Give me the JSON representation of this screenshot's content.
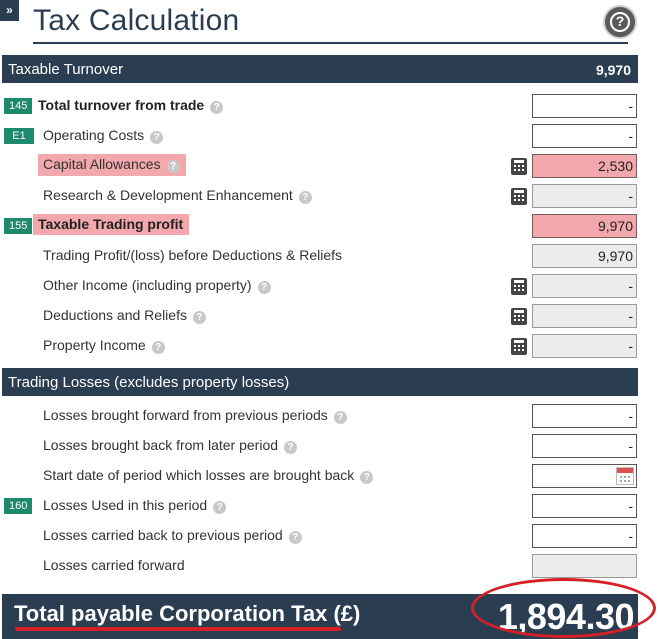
{
  "expand": "»",
  "title": "Tax Calculation",
  "help": "?",
  "sections": {
    "taxable_turnover": {
      "label": "Taxable Turnover",
      "value": "9,970"
    },
    "trading_losses": {
      "label": "Trading Losses (excludes property losses)"
    }
  },
  "rows": {
    "total_turnover": {
      "badge": "145",
      "label": "Total turnover from trade",
      "value": "-"
    },
    "operating_costs": {
      "badge": "E1",
      "label": "Operating Costs",
      "value": "-"
    },
    "capital_allowances": {
      "label": "Capital Allowances",
      "value": "2,530"
    },
    "rd_enhancement": {
      "label": "Research & Development Enhancement",
      "value": "-"
    },
    "taxable_trading_profit": {
      "badge": "155",
      "label": "Taxable Trading profit",
      "value": "9,970"
    },
    "trading_profit_before": {
      "label": "Trading Profit/(loss) before Deductions & Reliefs",
      "value": "9,970"
    },
    "other_income": {
      "label": "Other Income (including property)",
      "value": "-"
    },
    "deductions_reliefs": {
      "label": "Deductions and Reliefs",
      "value": "-"
    },
    "property_income": {
      "label": "Property Income",
      "value": "-"
    },
    "losses_bf": {
      "label": "Losses brought forward from previous periods",
      "value": "-"
    },
    "losses_bb": {
      "label": "Losses brought back from later period",
      "value": "-"
    },
    "start_date": {
      "label": "Start date of period which losses are brought back",
      "value": ""
    },
    "losses_used": {
      "badge": "160",
      "label": "Losses Used in this period",
      "value": "-"
    },
    "losses_cb": {
      "label": "Losses carried back to previous period",
      "value": "-"
    },
    "losses_cf": {
      "label": "Losses carried forward",
      "value": ""
    }
  },
  "total": {
    "label": "Total payable Corporation Tax (£)",
    "value": "1,894.30"
  },
  "colors": {
    "navy": "#2b3d50",
    "badge_green": "#1d8a6d",
    "highlight_pink": "#f2a8ad",
    "annotation_red": "#d61f26"
  },
  "icons": {
    "calculator": "calculator-icon",
    "help": "question-icon",
    "calendar": "calendar-icon"
  }
}
